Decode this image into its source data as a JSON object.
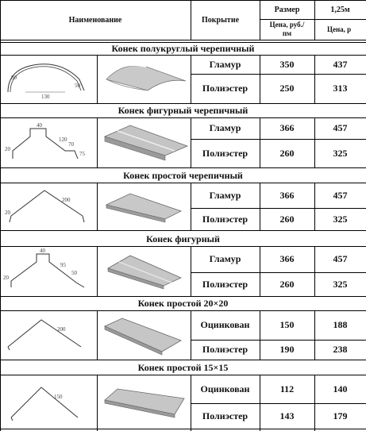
{
  "header": {
    "name_label": "Наименование",
    "coating_label": "Покрытие",
    "size_label": "Размер",
    "width_label": "1,25м",
    "price_label": "Цена, руб./пм",
    "price2_label": "Цена, р"
  },
  "sections": [
    {
      "title": "Конек полукруглый черепичный",
      "rows": [
        {
          "coating": "Гламур",
          "price": "350",
          "price2": "437"
        },
        {
          "coating": "Полиэстер",
          "price": "250",
          "price2": "313"
        }
      ]
    },
    {
      "title": "Конек фигурный черепичный",
      "rows": [
        {
          "coating": "Гламур",
          "price": "366",
          "price2": "457"
        },
        {
          "coating": "Полиэстер",
          "price": "260",
          "price2": "325"
        }
      ]
    },
    {
      "title": "Конек простой черепичный",
      "rows": [
        {
          "coating": "Гламур",
          "price": "366",
          "price2": "457"
        },
        {
          "coating": "Полиэстер",
          "price": "260",
          "price2": "325"
        }
      ]
    },
    {
      "title": "Конек фигурный",
      "rows": [
        {
          "coating": "Гламур",
          "price": "366",
          "price2": "457"
        },
        {
          "coating": "Полиэстер",
          "price": "260",
          "price2": "325"
        }
      ]
    },
    {
      "title": "Конек простой 20×20",
      "rows": [
        {
          "coating": "Оцинкован",
          "price": "150",
          "price2": "188"
        },
        {
          "coating": "Полиэстер",
          "price": "190",
          "price2": "238"
        }
      ]
    },
    {
      "title": "Конек простой 15×15",
      "rows": [
        {
          "coating": "Оцинкован",
          "price": "112",
          "price2": "140"
        },
        {
          "coating": "Полиэстер",
          "price": "143",
          "price2": "179"
        }
      ]
    }
  ],
  "drawing_dims": {
    "s1": [
      "80",
      "130",
      "50"
    ],
    "s2": [
      "40",
      "20",
      "120",
      "70",
      "75"
    ],
    "s3": [
      "200",
      "20"
    ],
    "s4": [
      "40",
      "20",
      "95",
      "50"
    ],
    "s5": [
      "200"
    ],
    "s6": [
      "150"
    ]
  }
}
